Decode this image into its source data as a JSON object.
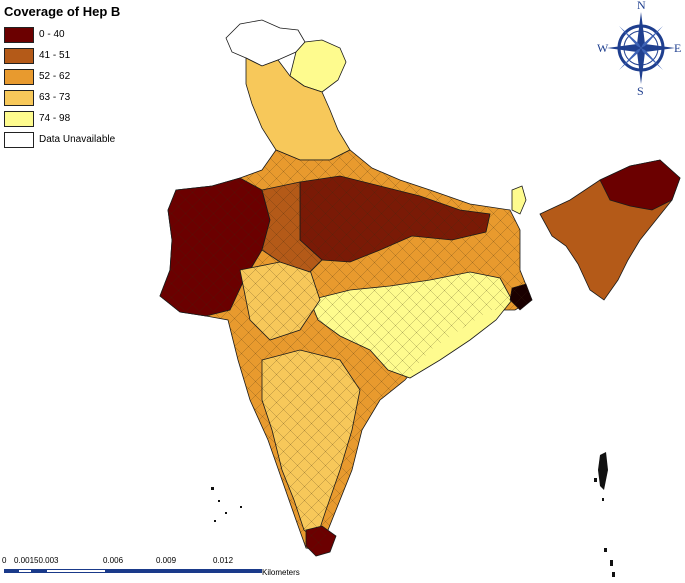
{
  "legend": {
    "title": "Coverage of Hep B",
    "items": [
      {
        "label": "0 - 40",
        "color": "#6b0000"
      },
      {
        "label": "41 - 51",
        "color": "#b45a18"
      },
      {
        "label": "52 - 62",
        "color": "#e89a2e"
      },
      {
        "label": "63 - 73",
        "color": "#f7c85a"
      },
      {
        "label": "74 - 98",
        "color": "#fefb8e"
      },
      {
        "label": "Data Unavailable",
        "color": "#ffffff"
      }
    ]
  },
  "compass": {
    "n": "N",
    "s": "S",
    "e": "E",
    "w": "W",
    "color": "#1f3f8f"
  },
  "scale": {
    "ticks": [
      "0",
      "0.00150.003",
      "0.006",
      "0.009",
      "0.012"
    ],
    "unit": "Kilometers"
  },
  "colors": {
    "border": "#1a1a1a",
    "ocean": "#ffffff"
  }
}
